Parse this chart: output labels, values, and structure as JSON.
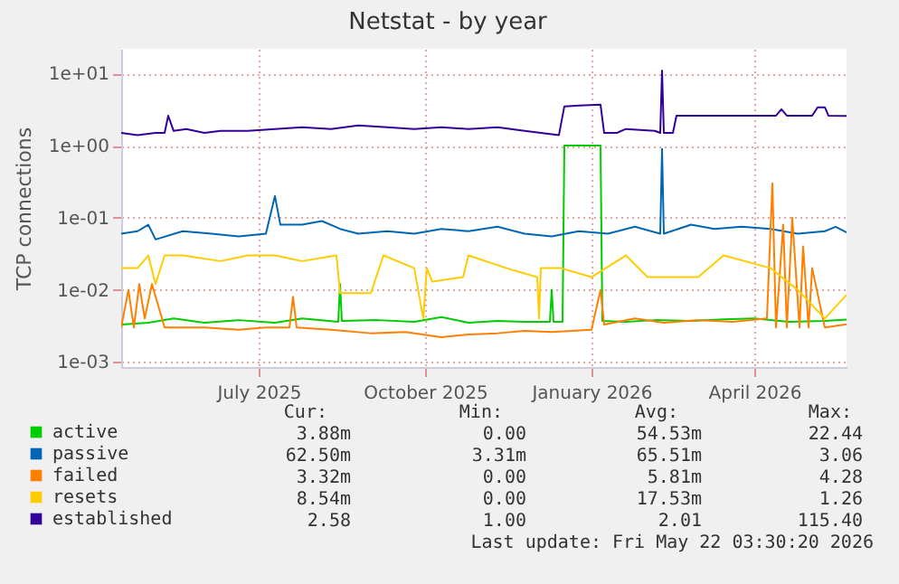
{
  "chart_data": {
    "type": "line",
    "title": "Netstat - by year",
    "ylabel": "TCP connections",
    "log": "y",
    "grid": true,
    "legend": "bottom",
    "xlim": [
      "2025-04-16",
      "2026-05-22"
    ],
    "xticks": [
      {
        "value": "2025-07-01",
        "label": "July 2025"
      },
      {
        "value": "2025-10-01",
        "label": "October 2025"
      },
      {
        "value": "2026-01-01",
        "label": "January 2026"
      },
      {
        "value": "2026-04-01",
        "label": "April 2026"
      }
    ],
    "ylim": [
      0.00085,
      22
    ],
    "yticks": [
      {
        "value": 0.001,
        "label": "1e-03"
      },
      {
        "value": 0.01,
        "label": "1e-02"
      },
      {
        "value": 0.1,
        "label": "1e-01"
      },
      {
        "value": 1,
        "label": "1e+00"
      },
      {
        "value": 10,
        "label": "1e+01"
      }
    ],
    "series": [
      {
        "name": "active",
        "color": "#00cc00",
        "x": [
          "2025-04-16",
          "2025-05-01",
          "2025-05-15",
          "2025-06-01",
          "2025-06-20",
          "2025-07-10",
          "2025-07-25",
          "2025-08-14",
          "2025-08-15",
          "2025-08-16",
          "2025-09-05",
          "2025-09-25",
          "2025-10-10",
          "2025-10-25",
          "2025-11-10",
          "2025-11-25",
          "2025-12-09",
          "2025-12-10",
          "2025-12-11",
          "2025-12-16",
          "2025-12-17",
          "2026-01-06",
          "2026-01-07",
          "2026-01-20",
          "2026-02-05",
          "2026-02-25",
          "2026-03-15",
          "2026-04-01",
          "2026-04-20",
          "2026-05-10",
          "2026-05-22"
        ],
        "values": [
          0.0033,
          0.0035,
          0.004,
          0.0035,
          0.0038,
          0.0035,
          0.004,
          0.0036,
          0.012,
          0.0037,
          0.0038,
          0.0036,
          0.0042,
          0.0035,
          0.0037,
          0.0036,
          0.0036,
          0.01,
          0.0036,
          0.0036,
          1.0,
          1.0,
          0.0037,
          0.0036,
          0.0038,
          0.0037,
          0.0039,
          0.004,
          0.0036,
          0.0037,
          0.00388
        ]
      },
      {
        "name": "passive",
        "color": "#0066b3",
        "x": [
          "2025-04-16",
          "2025-04-25",
          "2025-05-01",
          "2025-05-05",
          "2025-05-20",
          "2025-06-05",
          "2025-06-20",
          "2025-07-05",
          "2025-07-10",
          "2025-07-13",
          "2025-07-25",
          "2025-08-05",
          "2025-08-15",
          "2025-08-25",
          "2025-09-10",
          "2025-09-25",
          "2025-10-10",
          "2025-10-25",
          "2025-11-10",
          "2025-11-25",
          "2025-12-10",
          "2025-12-25",
          "2026-01-10",
          "2026-01-25",
          "2026-02-08",
          "2026-02-09",
          "2026-02-10",
          "2026-02-25",
          "2026-03-10",
          "2026-03-25",
          "2026-04-10",
          "2026-04-25",
          "2026-05-10",
          "2026-05-16",
          "2026-05-22"
        ],
        "values": [
          0.06,
          0.065,
          0.08,
          0.05,
          0.065,
          0.06,
          0.055,
          0.06,
          0.2,
          0.08,
          0.08,
          0.09,
          0.07,
          0.06,
          0.065,
          0.06,
          0.07,
          0.065,
          0.075,
          0.06,
          0.055,
          0.065,
          0.06,
          0.075,
          0.06,
          0.9,
          0.06,
          0.08,
          0.07,
          0.075,
          0.07,
          0.06,
          0.065,
          0.075,
          0.0625
        ]
      },
      {
        "name": "failed",
        "color": "#ff8000",
        "x": [
          "2025-04-16",
          "2025-04-20",
          "2025-04-23",
          "2025-04-26",
          "2025-04-29",
          "2025-05-03",
          "2025-05-10",
          "2025-06-01",
          "2025-06-20",
          "2025-07-05",
          "2025-07-18",
          "2025-07-20",
          "2025-07-22",
          "2025-08-10",
          "2025-09-01",
          "2025-09-20",
          "2025-10-10",
          "2025-10-25",
          "2025-11-10",
          "2025-11-25",
          "2025-12-10",
          "2026-01-01",
          "2026-01-06",
          "2026-01-08",
          "2026-01-25",
          "2026-02-10",
          "2026-03-01",
          "2026-03-20",
          "2026-04-08",
          "2026-04-11",
          "2026-04-13",
          "2026-04-17",
          "2026-04-19",
          "2026-04-22",
          "2026-04-26",
          "2026-04-28",
          "2026-05-01",
          "2026-05-03",
          "2026-05-10",
          "2026-05-22"
        ],
        "values": [
          0.003,
          0.01,
          0.003,
          0.012,
          0.004,
          0.012,
          0.003,
          0.003,
          0.0028,
          0.003,
          0.003,
          0.008,
          0.003,
          0.0028,
          0.0025,
          0.0026,
          0.0022,
          0.0024,
          0.0025,
          0.0027,
          0.0026,
          0.0028,
          0.01,
          0.0033,
          0.004,
          0.0035,
          0.0038,
          0.0036,
          0.004,
          0.3,
          0.003,
          0.08,
          0.003,
          0.1,
          0.003,
          0.04,
          0.003,
          0.02,
          0.003,
          0.00332
        ]
      },
      {
        "name": "resets",
        "color": "#ffcc00",
        "x": [
          "2025-04-16",
          "2025-04-25",
          "2025-05-01",
          "2025-05-05",
          "2025-05-10",
          "2025-05-20",
          "2025-06-10",
          "2025-06-25",
          "2025-07-10",
          "2025-07-25",
          "2025-08-13",
          "2025-08-15",
          "2025-09-01",
          "2025-09-08",
          "2025-09-25",
          "2025-09-30",
          "2025-10-02",
          "2025-10-05",
          "2025-10-22",
          "2025-10-25",
          "2025-11-15",
          "2025-12-02",
          "2025-12-03",
          "2025-12-04",
          "2025-12-15",
          "2026-01-01",
          "2026-01-20",
          "2026-02-01",
          "2026-03-01",
          "2026-03-15",
          "2026-04-10",
          "2026-04-25",
          "2026-05-10",
          "2026-05-22"
        ],
        "values": [
          0.02,
          0.02,
          0.03,
          0.012,
          0.03,
          0.03,
          0.025,
          0.03,
          0.03,
          0.025,
          0.03,
          0.009,
          0.009,
          0.03,
          0.02,
          0.004,
          0.02,
          0.013,
          0.015,
          0.03,
          0.02,
          0.015,
          0.004,
          0.02,
          0.02,
          0.015,
          0.03,
          0.015,
          0.015,
          0.03,
          0.02,
          0.01,
          0.004,
          0.00854
        ]
      },
      {
        "name": "established",
        "color": "#330099",
        "x": [
          "2025-04-16",
          "2025-04-25",
          "2025-05-05",
          "2025-05-10",
          "2025-05-12",
          "2025-05-15",
          "2025-05-22",
          "2025-06-01",
          "2025-06-10",
          "2025-06-25",
          "2025-07-10",
          "2025-07-25",
          "2025-08-10",
          "2025-08-25",
          "2025-09-10",
          "2025-09-25",
          "2025-10-10",
          "2025-10-25",
          "2025-11-10",
          "2025-11-25",
          "2025-12-14",
          "2025-12-17",
          "2025-12-25",
          "2026-01-06",
          "2026-01-08",
          "2026-01-15",
          "2026-01-20",
          "2026-02-05",
          "2026-02-08",
          "2026-02-09",
          "2026-02-10",
          "2026-02-15",
          "2026-02-17",
          "2026-03-10",
          "2026-04-13",
          "2026-04-16",
          "2026-04-19",
          "2026-05-03",
          "2026-05-06",
          "2026-05-10",
          "2026-05-12",
          "2026-05-22"
        ],
        "values": [
          1.5,
          1.4,
          1.5,
          1.5,
          2.6,
          1.6,
          1.7,
          1.5,
          1.6,
          1.6,
          1.7,
          1.8,
          1.7,
          1.9,
          1.8,
          1.7,
          1.8,
          1.7,
          1.8,
          1.6,
          1.4,
          3.5,
          3.6,
          3.7,
          1.5,
          1.5,
          1.7,
          1.6,
          1.5,
          11,
          1.5,
          1.5,
          2.6,
          2.6,
          2.6,
          3.2,
          2.6,
          2.6,
          3.4,
          3.4,
          2.6,
          2.58
        ]
      }
    ],
    "annotations": [
      "Cur:",
      "Min:",
      "Avg:",
      "Max:",
      "3.88m",
      "0.00",
      "54.53m",
      "22.44",
      "62.50m",
      "3.31m",
      "65.51m",
      "3.06",
      "3.32m",
      "0.00",
      "5.81m",
      "4.28",
      "8.54m",
      "0.00",
      "17.53m",
      "1.26",
      "2.58",
      "1.00",
      "2.01",
      "115.40",
      "Last update: Fri May 22 03:30:20 2026"
    ]
  }
}
